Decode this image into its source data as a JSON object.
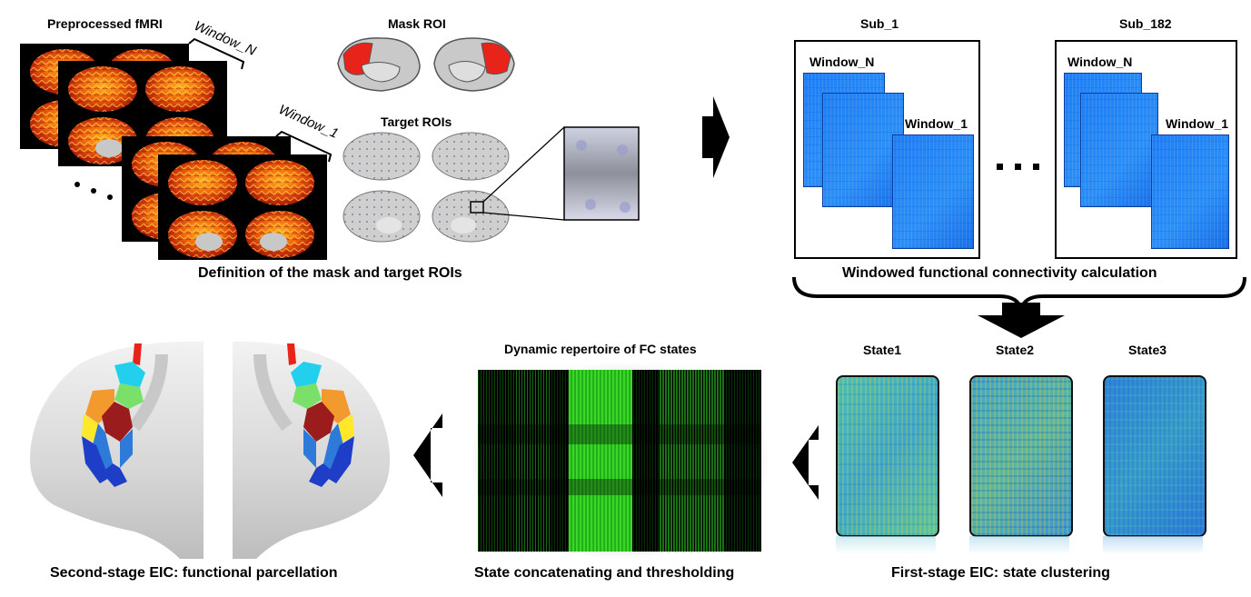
{
  "top_left": {
    "preprocessed": "Preprocessed fMRI",
    "window_n": "Window_N",
    "window_1": "Window_1",
    "mask_roi": "Mask ROI",
    "target_rois": "Target ROIs",
    "caption": "Definition of the mask and target ROIs"
  },
  "top_right": {
    "sub_first": "Sub_1",
    "sub_last": "Sub_182",
    "window_n": "Window_N",
    "window_1": "Window_1",
    "caption": "Windowed functional connectivity calculation"
  },
  "bottom_right": {
    "states": [
      "State1",
      "State2",
      "State3"
    ],
    "caption": "First-stage EIC: state clustering"
  },
  "bottom_middle": {
    "title": "Dynamic repertoire of FC states",
    "caption": "State concatenating and thresholding"
  },
  "bottom_left": {
    "caption": "Second-stage EIC: functional parcellation"
  },
  "colors": {
    "fc_blue": "#2a8af5",
    "mask_red": "#e8231a",
    "green": "#33dd22"
  }
}
